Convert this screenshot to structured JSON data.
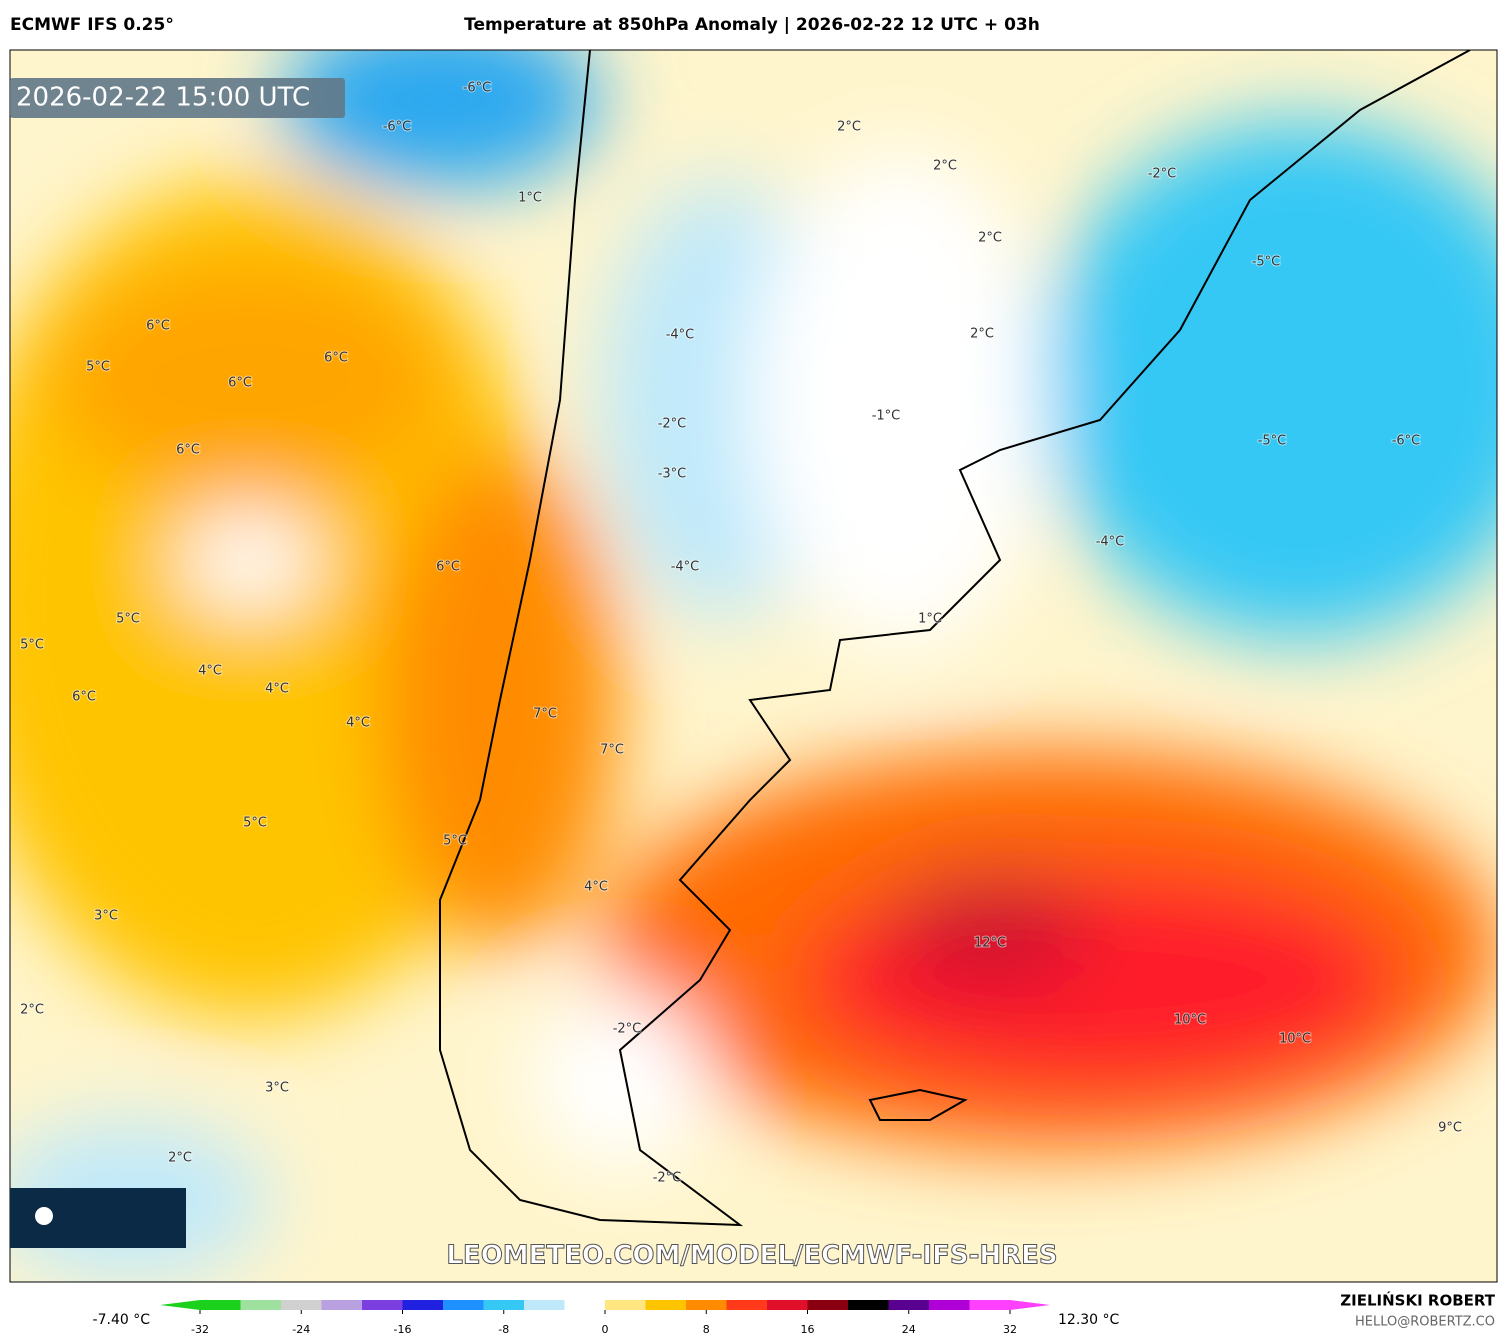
{
  "header": {
    "model": "ECMWF IFS 0.25°",
    "title": "Temperature at 850hPa Anomaly | 2026-02-22 12 UTC + 03h"
  },
  "map": {
    "valid_time": "2026-02-22 15:00 UTC",
    "watermark": "LEOMETEO.COM/MODEL/ECMWF-IFS-HRES",
    "labels": [
      "-6°C",
      "-6°C",
      "1°C",
      "2°C",
      "2°C",
      "-2°C",
      "2°C",
      "-5°C",
      "6°C",
      "6°C",
      "5°C",
      "6°C",
      "-4°C",
      "2°C",
      "-1°C",
      "-2°C",
      "-5°C",
      "-6°C",
      "6°C",
      "-3°C",
      "-4°C",
      "6°C",
      "-4°C",
      "1°C",
      "5°C",
      "5°C",
      "4°C",
      "4°C",
      "6°C",
      "4°C",
      "7°C",
      "7°C",
      "5°C",
      "5°C",
      "4°C",
      "3°C",
      "12°C",
      "2°C",
      "10°C",
      "10°C",
      "-2°C",
      "3°C",
      "2°C",
      "9°C",
      "-2°C"
    ]
  },
  "colorbar": {
    "min_label": "-7.40 °C",
    "max_label": "12.30 °C",
    "range": [
      -32,
      32
    ],
    "ticks": [
      -32,
      -24,
      -16,
      -8,
      0,
      8,
      16,
      24,
      32
    ],
    "colors": [
      "#1bd11b",
      "#9ee09e",
      "#d0d0d0",
      "#b9a0e0",
      "#7b3fe0",
      "#2020e0",
      "#1e90ff",
      "#35c8f5",
      "#bfe9fb",
      "#ffffff",
      "#ffe680",
      "#ffc400",
      "#ff8c00",
      "#ff3a1a",
      "#e0102a",
      "#8b0010",
      "#000000",
      "#5a0090",
      "#b000d8",
      "#ff40ff"
    ]
  },
  "footer": {
    "author": "ZIELIŃSKI ROBERT",
    "email": "HELLO@ROBERTZ.CO"
  }
}
